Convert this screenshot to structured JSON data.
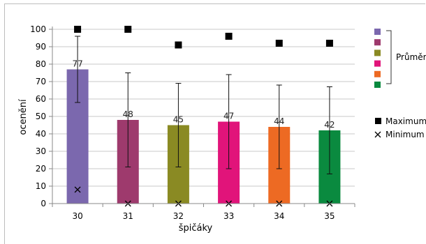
{
  "chart_data": {
    "type": "bar",
    "xlabel": "špičáky",
    "ylabel": "ocenění",
    "ylim": [
      0,
      100
    ],
    "ytick_step": 10,
    "grid": true,
    "legend_position": "right",
    "categories": [
      "30",
      "31",
      "32",
      "33",
      "34",
      "35"
    ],
    "series": [
      {
        "name": "Průměr",
        "kind": "bar",
        "values": [
          77,
          48,
          45,
          47,
          44,
          42
        ],
        "error_low": [
          58,
          21,
          21,
          20,
          20,
          17
        ],
        "error_high": [
          96,
          75,
          69,
          74,
          68,
          67
        ],
        "colors": [
          "#7b68ae",
          "#9e3a6d",
          "#8a8a23",
          "#e1147a",
          "#ed6a23",
          "#0a8a3f"
        ]
      },
      {
        "name": "Maximum",
        "kind": "marker",
        "marker": "square",
        "values": [
          100,
          100,
          91,
          96,
          92,
          92
        ]
      },
      {
        "name": "Minimum",
        "kind": "marker",
        "marker": "x",
        "values": [
          8,
          0,
          0,
          0,
          0,
          0
        ]
      }
    ]
  }
}
